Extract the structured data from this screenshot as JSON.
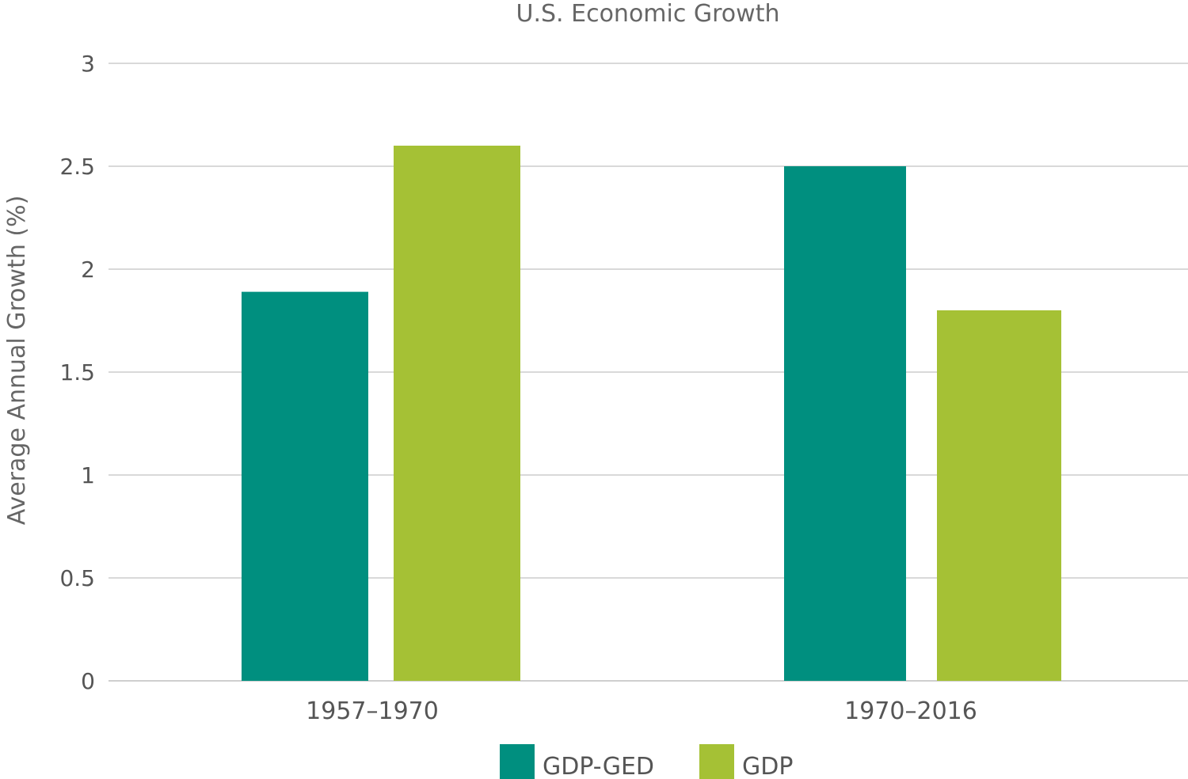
{
  "chart_data": {
    "type": "bar",
    "title": "U.S. Economic Growth",
    "xlabel": "",
    "ylabel": "Average Annual Growth (%)",
    "categories": [
      "1957–1970",
      "1970–2016"
    ],
    "series": [
      {
        "name": "GDP-GED",
        "values": [
          1.89,
          2.5
        ],
        "color": "#008f7f"
      },
      {
        "name": "GDP",
        "values": [
          2.6,
          1.8
        ],
        "color": "#a5c135"
      }
    ],
    "ylim": [
      0,
      3
    ],
    "yticks": [
      0,
      0.5,
      1,
      1.5,
      2,
      2.5,
      3
    ],
    "grid": true,
    "legend_position": "bottom"
  }
}
